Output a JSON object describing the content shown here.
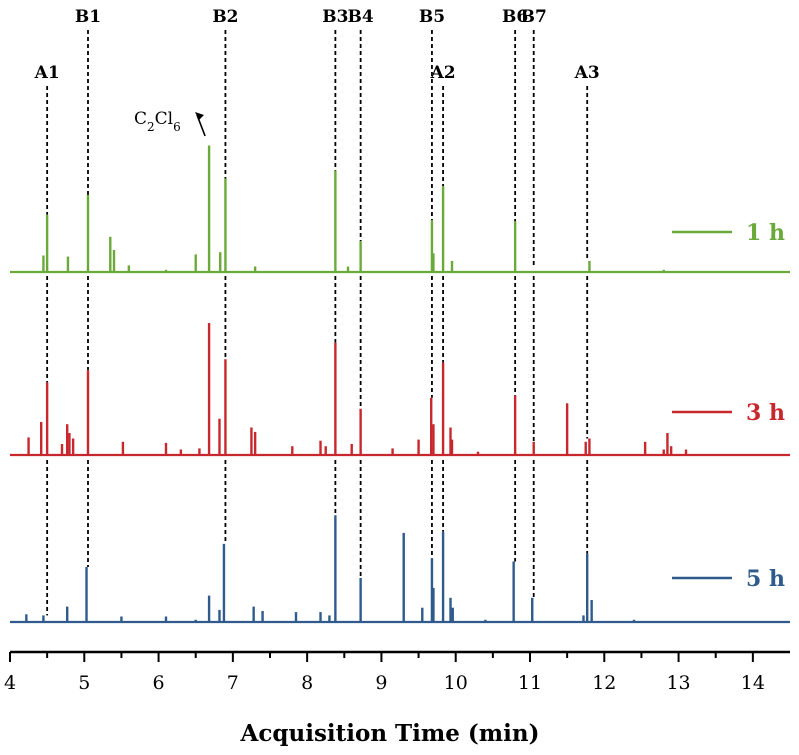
{
  "chart_data": {
    "type": "line",
    "xlabel": "Acquisition Time (min)",
    "xlim": [
      4,
      14.5
    ],
    "xticks": [
      4,
      5,
      6,
      7,
      8,
      9,
      10,
      11,
      12,
      13,
      14
    ],
    "xtick_labels": [
      "4",
      "5",
      "6",
      "7",
      "8",
      "9",
      "10",
      "11",
      "12",
      "13",
      "14"
    ],
    "ylabel": "",
    "grid": false,
    "legend_placement": "right of each trace",
    "series": [
      {
        "name": "1 h",
        "color": "#6aaa3a",
        "peaks": [
          [
            4.45,
            0.15
          ],
          [
            4.5,
            0.52
          ],
          [
            4.78,
            0.14
          ],
          [
            5.05,
            0.7
          ],
          [
            5.35,
            0.32
          ],
          [
            5.4,
            0.2
          ],
          [
            5.6,
            0.06
          ],
          [
            6.1,
            0.02
          ],
          [
            6.5,
            0.16
          ],
          [
            6.68,
            1.15
          ],
          [
            6.83,
            0.18
          ],
          [
            6.9,
            0.85
          ],
          [
            7.3,
            0.05
          ],
          [
            8.38,
            0.92
          ],
          [
            8.55,
            0.05
          ],
          [
            8.72,
            0.28
          ],
          [
            9.68,
            0.47
          ],
          [
            9.7,
            0.17
          ],
          [
            9.83,
            0.78
          ],
          [
            9.95,
            0.1
          ],
          [
            10.8,
            0.46
          ],
          [
            11.8,
            0.1
          ],
          [
            12.8,
            0.02
          ]
        ]
      },
      {
        "name": "3 h",
        "color": "#c8282d",
        "peaks": [
          [
            4.25,
            0.16
          ],
          [
            4.42,
            0.3
          ],
          [
            4.5,
            0.66
          ],
          [
            4.7,
            0.1
          ],
          [
            4.77,
            0.28
          ],
          [
            4.8,
            0.2
          ],
          [
            4.85,
            0.15
          ],
          [
            5.05,
            0.77
          ],
          [
            5.52,
            0.12
          ],
          [
            6.1,
            0.11
          ],
          [
            6.3,
            0.05
          ],
          [
            6.55,
            0.06
          ],
          [
            6.68,
            1.2
          ],
          [
            6.82,
            0.33
          ],
          [
            6.9,
            0.87
          ],
          [
            7.25,
            0.25
          ],
          [
            7.3,
            0.21
          ],
          [
            7.8,
            0.08
          ],
          [
            8.18,
            0.13
          ],
          [
            8.25,
            0.08
          ],
          [
            8.38,
            1.02
          ],
          [
            8.6,
            0.1
          ],
          [
            8.72,
            0.42
          ],
          [
            9.15,
            0.06
          ],
          [
            9.5,
            0.14
          ],
          [
            9.67,
            0.52
          ],
          [
            9.7,
            0.28
          ],
          [
            9.83,
            0.84
          ],
          [
            9.93,
            0.25
          ],
          [
            9.95,
            0.14
          ],
          [
            10.3,
            0.03
          ],
          [
            10.8,
            0.54
          ],
          [
            11.05,
            0.12
          ],
          [
            11.5,
            0.47
          ],
          [
            11.75,
            0.12
          ],
          [
            11.8,
            0.15
          ],
          [
            12.55,
            0.12
          ],
          [
            12.8,
            0.05
          ],
          [
            12.85,
            0.2
          ],
          [
            12.9,
            0.08
          ],
          [
            13.1,
            0.05
          ]
        ]
      },
      {
        "name": "5 h",
        "color": "#2e5a8c",
        "peaks": [
          [
            4.22,
            0.07
          ],
          [
            4.45,
            0.06
          ],
          [
            4.77,
            0.14
          ],
          [
            5.03,
            0.5
          ],
          [
            5.5,
            0.05
          ],
          [
            6.1,
            0.05
          ],
          [
            6.5,
            0.02
          ],
          [
            6.68,
            0.24
          ],
          [
            6.82,
            0.11
          ],
          [
            6.88,
            0.71
          ],
          [
            7.28,
            0.14
          ],
          [
            7.4,
            0.1
          ],
          [
            7.85,
            0.09
          ],
          [
            8.18,
            0.09
          ],
          [
            8.3,
            0.06
          ],
          [
            8.38,
            0.97
          ],
          [
            8.72,
            0.4
          ],
          [
            9.3,
            0.81
          ],
          [
            9.55,
            0.13
          ],
          [
            9.68,
            0.58
          ],
          [
            9.7,
            0.31
          ],
          [
            9.83,
            0.82
          ],
          [
            9.93,
            0.22
          ],
          [
            9.96,
            0.13
          ],
          [
            10.4,
            0.02
          ],
          [
            10.78,
            0.55
          ],
          [
            11.03,
            0.22
          ],
          [
            11.72,
            0.06
          ],
          [
            11.77,
            0.62
          ],
          [
            11.83,
            0.2
          ],
          [
            12.4,
            0.02
          ]
        ]
      }
    ],
    "markers": [
      {
        "label": "A1",
        "x": 4.5
      },
      {
        "label": "B1",
        "x": 5.05
      },
      {
        "label": "B2",
        "x": 6.9
      },
      {
        "label": "B3",
        "x": 8.38
      },
      {
        "label": "B4",
        "x": 8.72
      },
      {
        "label": "B5",
        "x": 9.68
      },
      {
        "label": "A2",
        "x": 9.83
      },
      {
        "label": "B6",
        "x": 10.8
      },
      {
        "label": "B7",
        "x": 11.05
      },
      {
        "label": "A3",
        "x": 11.77
      }
    ],
    "annotations": [
      {
        "text": "C2Cl6",
        "target_x": 6.68
      }
    ]
  }
}
